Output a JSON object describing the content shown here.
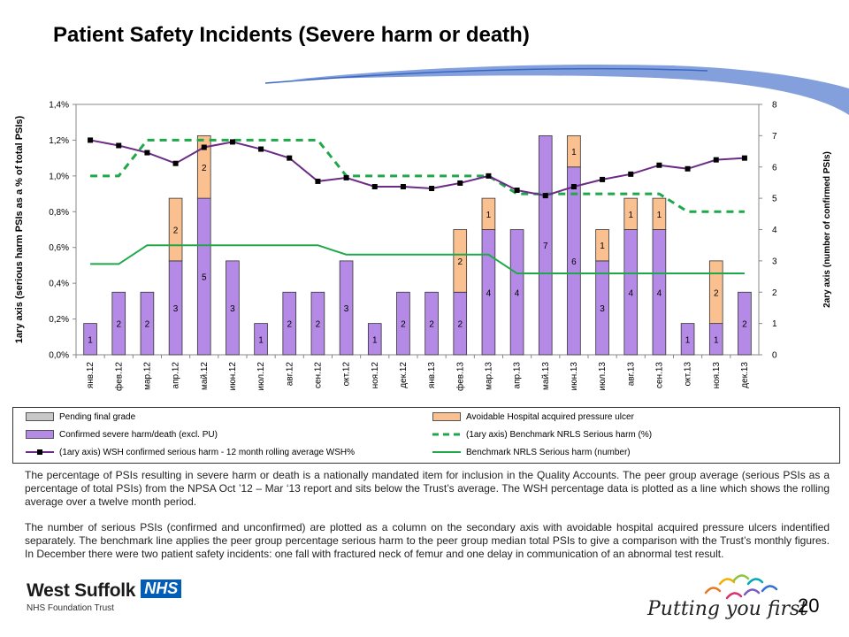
{
  "page": {
    "title": "Patient Safety Incidents (Severe harm or death)",
    "page_number": "20",
    "paragraph1": "The percentage of PSIs resulting in severe harm or death is a nationally mandated item for inclusion in the Quality Accounts. The peer group average (serious PSIs as a percentage of total PSIs) from the NPSA Oct ’12 – Mar ‘13 report and sits below the Trust’s average. The WSH percentage data is plotted as a line which shows the rolling average over a twelve month period.",
    "paragraph2": "The number of serious PSIs (confirmed and unconfirmed) are plotted as a column on the secondary axis with avoidable hospital acquired pressure ulcers indentified separately. The benchmark line applies the peer group percentage serious harm to the peer group median total PSIs to give a comparison with the Trust’s monthly figures. In December there were two patient safety incidents: one fall with fractured neck of femur and one delay in communication of an abnormal test result.",
    "logo": {
      "name": "West Suffolk",
      "nhs": "NHS",
      "trust": "NHS Foundation Trust"
    },
    "slogan": "Putting you first"
  },
  "colors": {
    "confirmed": "#b48ae6",
    "pressure_ulcer": "#fac090",
    "pending": "#c8c8c8",
    "wsh_line": "#6b2b86",
    "benchmark_pct": "#1fa84a",
    "benchmark_num": "#1fa84a",
    "swoosh": "#6d8fd6"
  },
  "chart_data": {
    "type": "bar",
    "categories": [
      "янв.12",
      "фев.12",
      "мар.12",
      "апр.12",
      "май.12",
      "июн.12",
      "июл.12",
      "авг.12",
      "сен.12",
      "окт.12",
      "ноя.12",
      "дек.12",
      "янв.13",
      "фев.13",
      "мар.13",
      "апр.13",
      "май.13",
      "июн.13",
      "июл.13",
      "авг.13",
      "сен.13",
      "окт.13",
      "ноя.13",
      "дек.13"
    ],
    "y1label": "1ary axis (serious harm PSIs as a % of total PSIs)",
    "y2label": "2ary axis (number of confirmed PSIs)",
    "y1lim": [
      0,
      1.4
    ],
    "y1ticks": [
      "0,0%",
      "0,2%",
      "0,4%",
      "0,6%",
      "0,8%",
      "1,0%",
      "1,2%",
      "1,4%"
    ],
    "y2lim": [
      0,
      8
    ],
    "y2ticks": [
      "0",
      "1",
      "2",
      "3",
      "4",
      "5",
      "6",
      "7",
      "8"
    ],
    "series": [
      {
        "name": "Pending final grade",
        "axis": "secondary",
        "kind": "bar",
        "values": [
          0,
          0,
          0,
          0,
          0,
          0,
          0,
          0,
          0,
          0,
          0,
          0,
          0,
          0,
          0,
          0,
          0,
          0,
          0,
          0,
          0,
          0,
          0,
          0
        ]
      },
      {
        "name": "Confirmed severe harm/death (excl. PU)",
        "axis": "secondary",
        "kind": "bar",
        "values": [
          1,
          2,
          2,
          3,
          5,
          3,
          1,
          2,
          2,
          3,
          1,
          2,
          2,
          2,
          4,
          4,
          7,
          6,
          3,
          4,
          4,
          1,
          1,
          2
        ],
        "labels": [
          "1",
          "2",
          "2",
          "3",
          "5",
          "3",
          "1",
          "2",
          "2",
          "3",
          "1",
          "2",
          "2",
          "2",
          "4",
          "4",
          "7",
          "6",
          "3",
          "4",
          "4",
          "1",
          "1",
          "2"
        ]
      },
      {
        "name": "Avoidable Hospital acquired pressure ulcer",
        "axis": "secondary",
        "kind": "bar",
        "values": [
          0,
          0,
          0,
          2,
          2,
          0,
          0,
          0,
          0,
          0,
          0,
          0,
          0,
          2,
          1,
          0,
          0,
          1,
          1,
          1,
          1,
          0,
          2,
          0
        ],
        "labels": [
          "",
          "",
          "",
          "2",
          "2",
          "",
          "",
          "",
          "",
          "",
          "",
          "",
          "",
          "2",
          "1",
          "",
          "",
          "1",
          "1",
          "1",
          "1",
          "",
          "2",
          ""
        ]
      },
      {
        "name": "(1ary axis) WSH confirmed serious harm - 12 month rolling average   WSH%",
        "axis": "primary",
        "kind": "line",
        "values": [
          1.2,
          1.17,
          1.13,
          1.07,
          1.16,
          1.19,
          1.15,
          1.1,
          0.97,
          0.99,
          0.94,
          0.94,
          0.93,
          0.96,
          1.0,
          0.92,
          0.89,
          0.94,
          0.98,
          1.01,
          1.06,
          1.04,
          1.09,
          1.1
        ]
      },
      {
        "name": "(1ary axis) Benchmark NRLS Serious harm (%)",
        "axis": "primary",
        "kind": "dashed-line",
        "values": [
          1.0,
          1.0,
          1.2,
          1.2,
          1.2,
          1.2,
          1.2,
          1.2,
          1.2,
          1.0,
          1.0,
          1.0,
          1.0,
          1.0,
          1.0,
          0.9,
          0.9,
          0.9,
          0.9,
          0.9,
          0.9,
          0.8,
          0.8,
          0.8
        ]
      },
      {
        "name": "Benchmark NRLS Serious harm (number)",
        "axis": "secondary",
        "kind": "line",
        "values": [
          2.9,
          2.9,
          3.5,
          3.5,
          3.5,
          3.5,
          3.5,
          3.5,
          3.5,
          3.2,
          3.2,
          3.2,
          3.2,
          3.2,
          3.2,
          2.6,
          2.6,
          2.6,
          2.6,
          2.6,
          2.6,
          2.6,
          2.6,
          2.6
        ]
      }
    ],
    "grid": false,
    "legend_position": "bottom"
  }
}
